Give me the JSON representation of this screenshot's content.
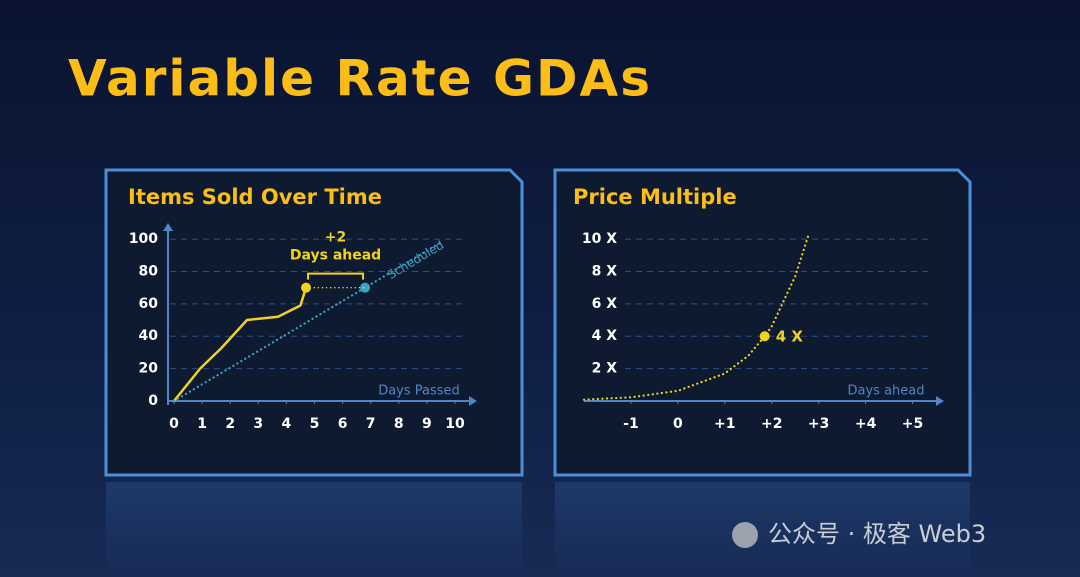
{
  "title": "Variable Rate GDAs",
  "watermark": "公众号 · 极客 Web3",
  "chart_data": [
    {
      "type": "line",
      "title": "Items Sold Over Time",
      "xlabel": "Days Passed",
      "xlim": [
        0,
        10.5
      ],
      "ylim": [
        0,
        105
      ],
      "xticks": [
        0,
        1,
        2,
        3,
        4,
        5,
        6,
        7,
        8,
        9,
        10
      ],
      "yticks": [
        0,
        20,
        40,
        60,
        80,
        100
      ],
      "grid": true,
      "y_axis_line": true,
      "annotations": [
        "+2",
        "Days ahead"
      ],
      "series": [
        {
          "color": "#f2d21b",
          "line_style": "solid",
          "marker_index": 6,
          "x": [
            0,
            0.93,
            1.7,
            2.6,
            3.7,
            4.5,
            4.7
          ],
          "values": [
            0,
            20,
            33,
            50,
            52,
            59,
            70
          ]
        },
        {
          "name": "Scheduled",
          "color": "#3aa3c4",
          "line_style": "dotted",
          "marker_index": 1,
          "x": [
            0,
            6.8,
            9.5
          ],
          "values": [
            0,
            70,
            98
          ]
        }
      ]
    },
    {
      "type": "line",
      "title": "Price Multiple",
      "xlabel": "Days ahead",
      "xlim": [
        -2,
        5.5
      ],
      "ylim": [
        0,
        10.5
      ],
      "xticks": [
        -1,
        0,
        {
          "value": 1,
          "label": "+1"
        },
        {
          "value": 2,
          "label": "+2"
        },
        {
          "value": 3,
          "label": "+3"
        },
        {
          "value": 4,
          "label": "+4"
        },
        {
          "value": 5,
          "label": "+5"
        }
      ],
      "yticks": [
        {
          "value": 2,
          "label": "2 X"
        },
        {
          "value": 4,
          "label": "4 X"
        },
        {
          "value": 6,
          "label": "6 X"
        },
        {
          "value": 8,
          "label": "8 X"
        },
        {
          "value": 10,
          "label": "10 X"
        }
      ],
      "grid": true,
      "y_axis_line": false,
      "series": [
        {
          "color": "#f2d21b",
          "line_style": "dotted",
          "marker_index": 5,
          "marker_label": "4 X",
          "x": [
            -2,
            -1,
            0,
            1,
            1.5,
            1.85,
            2,
            2.5,
            2.8
          ],
          "values": [
            0.08,
            0.23,
            0.63,
            1.7,
            2.8,
            4,
            4.6,
            7.7,
            10.4
          ]
        }
      ]
    }
  ]
}
